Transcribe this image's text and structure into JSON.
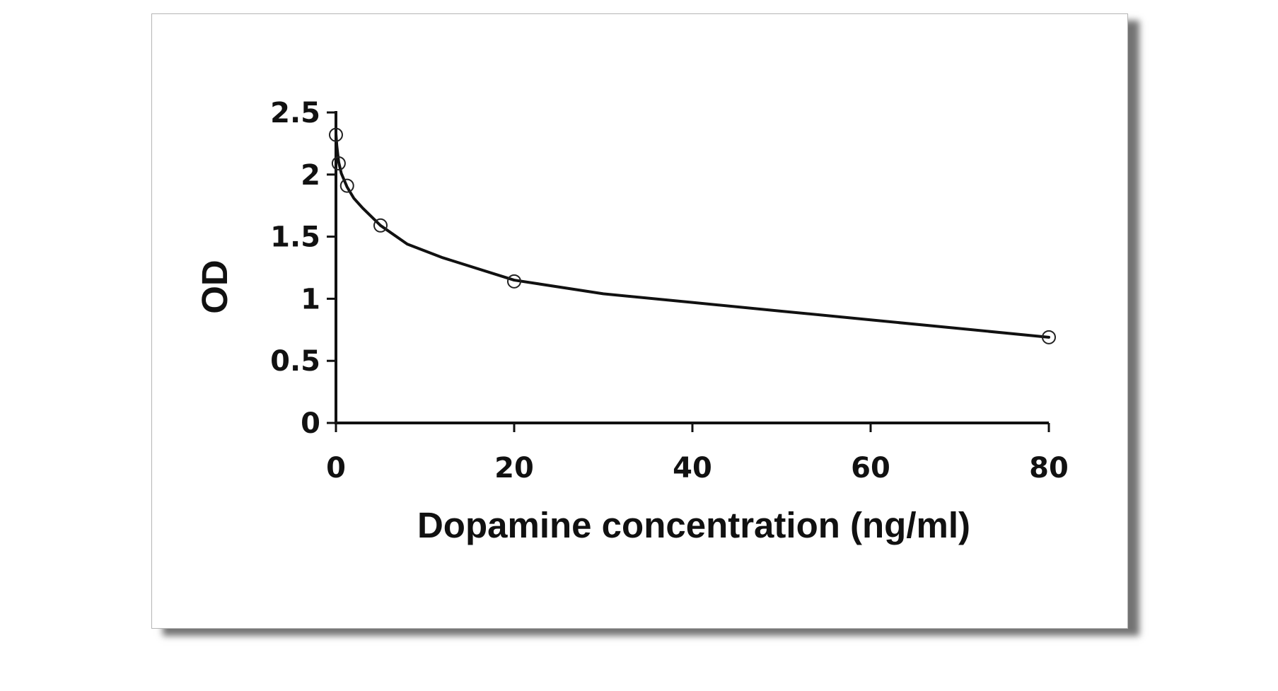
{
  "chart_data": {
    "type": "scatter",
    "title": "",
    "xlabel": "Dopamine concentration (ng/ml)",
    "ylabel": "OD",
    "xlim": [
      0,
      80
    ],
    "ylim": [
      0,
      2.5
    ],
    "x_ticks": [
      0,
      20,
      40,
      60,
      80
    ],
    "x_tick_labels": [
      "0",
      "20",
      "40",
      "60",
      "80"
    ],
    "y_ticks": [
      0,
      0.5,
      1,
      1.5,
      2,
      2.5
    ],
    "y_tick_labels": [
      "0",
      "0.5",
      "1",
      "1.5",
      "2",
      "2.5"
    ],
    "grid": false,
    "legend": "none",
    "series": [
      {
        "marker": "open-circle",
        "x": [
          0,
          0.31,
          1.25,
          5,
          20,
          80
        ],
        "y": [
          2.32,
          2.09,
          1.91,
          1.59,
          1.14,
          0.69
        ]
      }
    ],
    "fit_curve": {
      "style": "solid-black",
      "x": [
        0,
        0.1,
        0.31,
        0.6,
        1.25,
        2,
        3,
        5,
        8,
        12,
        20,
        30,
        40,
        50,
        60,
        70,
        80
      ],
      "y": [
        2.33,
        2.23,
        2.1,
        2.01,
        1.9,
        1.81,
        1.73,
        1.59,
        1.44,
        1.33,
        1.15,
        1.04,
        0.97,
        0.9,
        0.83,
        0.76,
        0.69
      ]
    },
    "colors": {
      "axis": "#111111",
      "marker": "#222222",
      "curve": "#111111"
    }
  }
}
